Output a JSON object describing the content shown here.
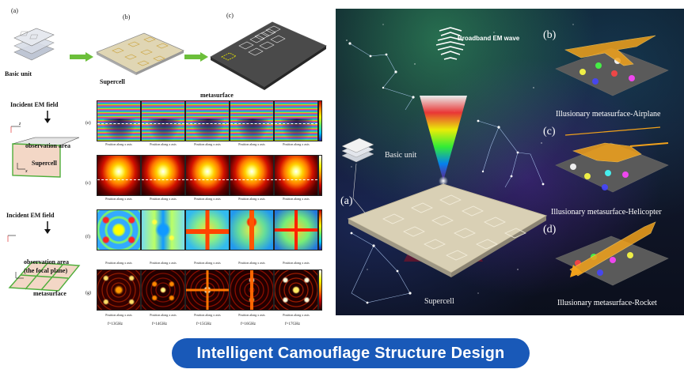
{
  "title": "Intelligent Camouflage Structure Design",
  "left_figure": {
    "panel_letters": [
      "(a)",
      "(b)",
      "(c)"
    ],
    "basic_unit_label": "Basic unit",
    "supercell_label": "Supercell",
    "metasurface_label": "metasurface",
    "incident_field_1": "Incident EM field",
    "incident_field_2": "Incident EM field",
    "observation_area_1": "observation area",
    "observation_area_2": "observation area",
    "focus_plane": "(the focal plane)",
    "metasurface_small": "metasurface",
    "supercell_small": "Supercell",
    "row_tags": [
      "(e)",
      "(c)",
      "(f)",
      "(g)"
    ],
    "subcaption": "Position along x axis",
    "freq_labels": [
      "f=13GHz",
      "f=14GHz",
      "f=15GHz",
      "f=16GHz",
      "f=17GHz"
    ],
    "colors": {
      "arrow_green": "#6cbf3a",
      "frame_green": "#4fae3b",
      "plate_fill": "#f3d7c6"
    }
  },
  "right_figure": {
    "broadband_label": "Broadband EM wave",
    "basic_unit_label": "Basic unit",
    "supercell_label": "Supercell",
    "panel_letters": [
      "(a)",
      "(b)",
      "(c)",
      "(d)"
    ],
    "captions": [
      "Illusionary metasurface-Airplane",
      "Illusionary metasurface-Helicopter",
      "Illusionary metasurface-Rocket"
    ],
    "colors": {
      "gold": "#f2a21b",
      "beam_top": "#ffffff",
      "beam_bottom": "#8a2be2"
    }
  },
  "banner": {
    "color": "#1959b8",
    "text_color": "#ffffff"
  }
}
